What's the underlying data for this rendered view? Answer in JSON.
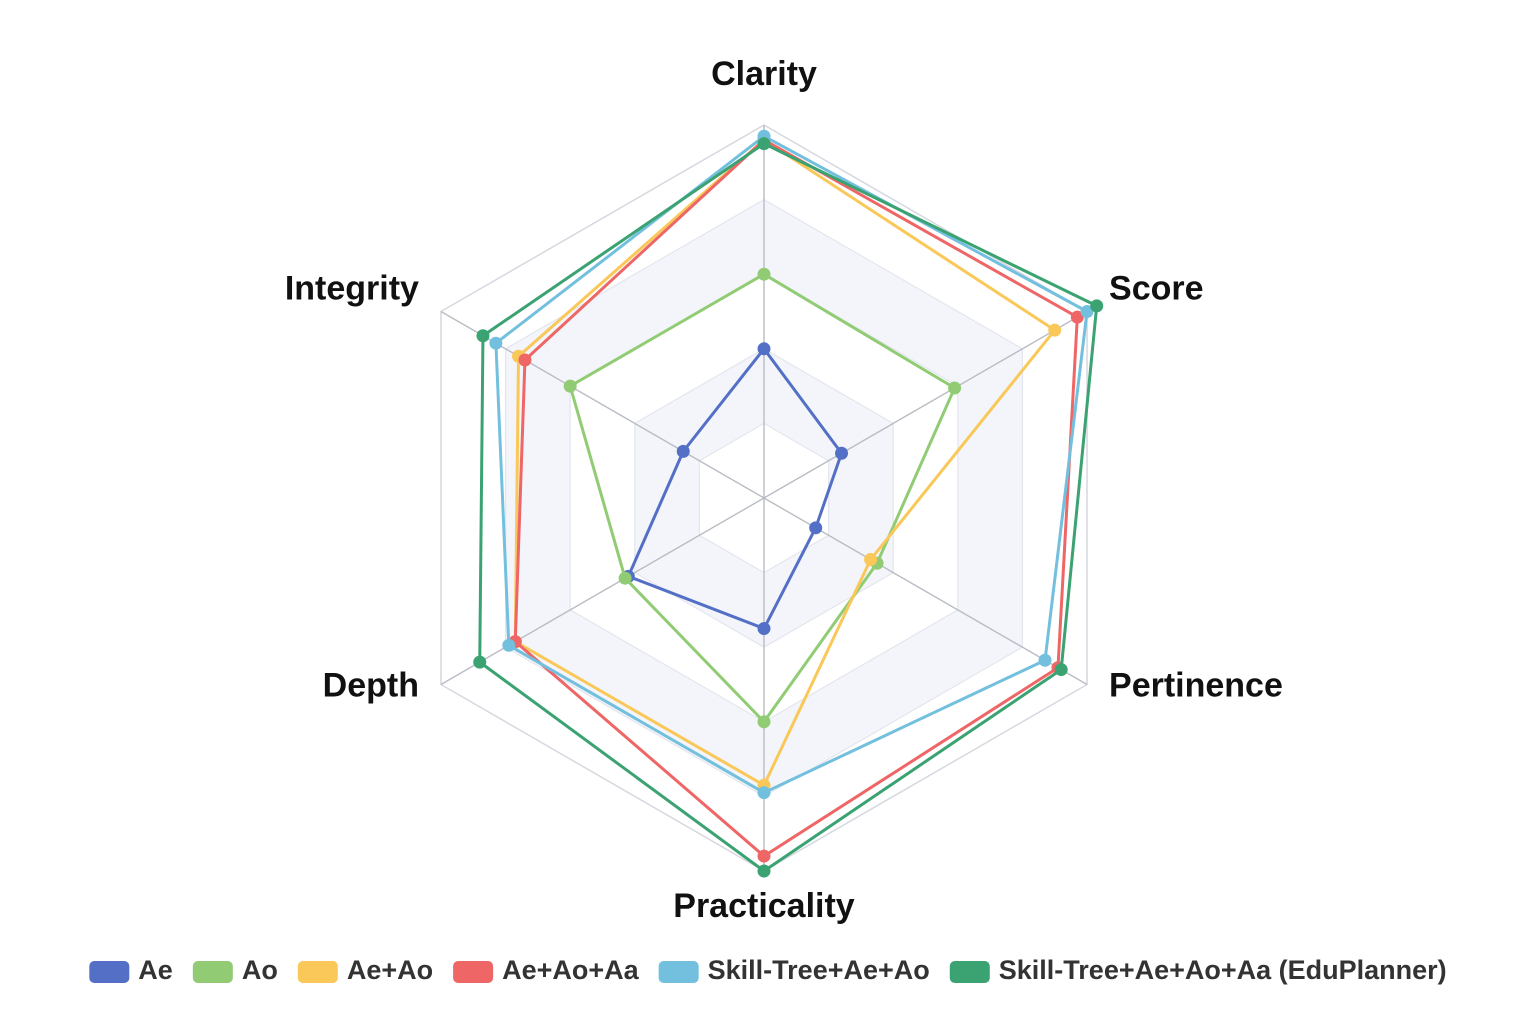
{
  "chart_data": {
    "type": "radar",
    "title": "",
    "indicators": [
      "Clarity",
      "Score",
      "Pertinence",
      "Practicality",
      "Depth",
      "Integrity"
    ],
    "range": [
      0,
      1
    ],
    "rings": 5,
    "grid": true,
    "legend_position": "bottom",
    "series": [
      {
        "name": "Ae",
        "color": "#5470c6",
        "values": [
          0.4,
          0.24,
          0.16,
          0.35,
          0.42,
          0.25
        ]
      },
      {
        "name": "Ao",
        "color": "#91cc75",
        "values": [
          0.6,
          0.59,
          0.35,
          0.6,
          0.43,
          0.6
        ]
      },
      {
        "name": "Ae+Ao",
        "color": "#fac858",
        "values": [
          0.96,
          0.9,
          0.33,
          0.77,
          0.77,
          0.76
        ]
      },
      {
        "name": "Ae+Ao+Aa",
        "color": "#ee6666",
        "values": [
          0.96,
          0.97,
          0.91,
          0.96,
          0.77,
          0.74
        ]
      },
      {
        "name": "Skill-Tree+Ae+Ao",
        "color": "#73c0de",
        "values": [
          0.97,
          1.0,
          0.87,
          0.79,
          0.79,
          0.83
        ]
      },
      {
        "name": "Skill-Tree+Ae+Ao+Aa (EduPlanner)",
        "color": "#3ba272",
        "values": [
          0.95,
          1.03,
          0.92,
          1.0,
          0.88,
          0.87
        ]
      }
    ]
  }
}
